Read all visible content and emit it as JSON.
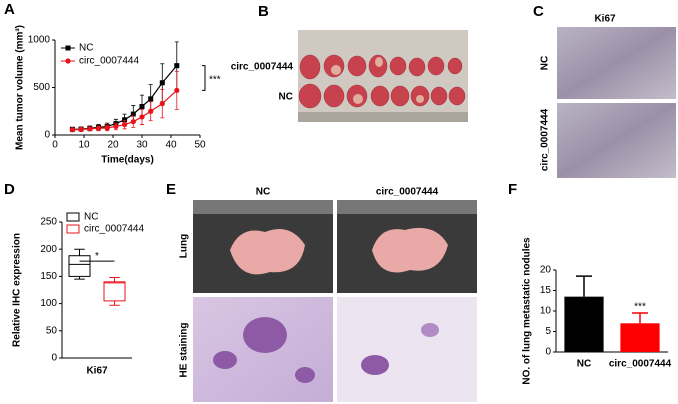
{
  "panel_labels": [
    "A",
    "B",
    "C",
    "D",
    "E",
    "F"
  ],
  "B": {
    "row_labels": [
      "circ_0007444",
      "NC"
    ]
  },
  "C": {
    "title": "Ki67",
    "row_labels": [
      "NC",
      "circ_0007444"
    ]
  },
  "E": {
    "column_labels": [
      "NC",
      "circ_0007444"
    ],
    "row_labels": [
      "Lung",
      "HE staining"
    ]
  },
  "chart_data": [
    {
      "type": "line",
      "x": [
        6,
        9,
        12,
        15,
        18,
        21,
        24,
        27,
        30,
        33,
        37,
        42
      ],
      "series": [
        {
          "name": "NC",
          "color": "#000000",
          "marker": "square",
          "values": [
            60,
            62,
            70,
            80,
            90,
            120,
            160,
            220,
            300,
            380,
            550,
            730
          ],
          "errors": [
            20,
            20,
            25,
            30,
            35,
            45,
            60,
            90,
            120,
            150,
            200,
            250
          ]
        },
        {
          "name": "circ_0007444",
          "color": "#e8141a",
          "marker": "circle",
          "values": [
            55,
            58,
            65,
            70,
            75,
            90,
            110,
            140,
            190,
            250,
            330,
            470
          ],
          "errors": [
            15,
            15,
            20,
            25,
            30,
            35,
            45,
            60,
            80,
            100,
            150,
            200
          ]
        }
      ],
      "xlim": [
        0,
        50
      ],
      "xticks": [
        0,
        10,
        20,
        30,
        40,
        50
      ],
      "ylim": [
        0,
        1000
      ],
      "yticks": [
        0,
        500,
        1000
      ],
      "xlabel": "Time(days)",
      "ylabel": "Mean tumor volume (mm³)",
      "annotation": "***",
      "legend": "upper left"
    },
    {
      "type": "box",
      "categories": [
        "Ki67"
      ],
      "series": [
        {
          "name": "NC",
          "color": "#000000",
          "min": 145,
          "q1": 150,
          "median": 172,
          "q3": 188,
          "max": 200
        },
        {
          "name": "circ_0007444",
          "color": "#e8141a",
          "min": 97,
          "q1": 105,
          "median": 138,
          "q3": 140,
          "max": 148
        }
      ],
      "ylim": [
        0,
        250
      ],
      "yticks": [
        0,
        50,
        100,
        150,
        200,
        250
      ],
      "ylabel": "Relative IHC expression",
      "annotation": "*",
      "legend": "upper left"
    },
    {
      "type": "bar",
      "categories": [
        "NC",
        "circ_0007444"
      ],
      "values": [
        13.5,
        7
      ],
      "errors": [
        5,
        2.5
      ],
      "colors": [
        "#000000",
        "#ff0000"
      ],
      "ylim": [
        0,
        20
      ],
      "yticks": [
        0,
        5,
        10,
        15,
        20
      ],
      "ylabel": "NO. of lung metastatic nodules",
      "annotation": "***"
    }
  ]
}
